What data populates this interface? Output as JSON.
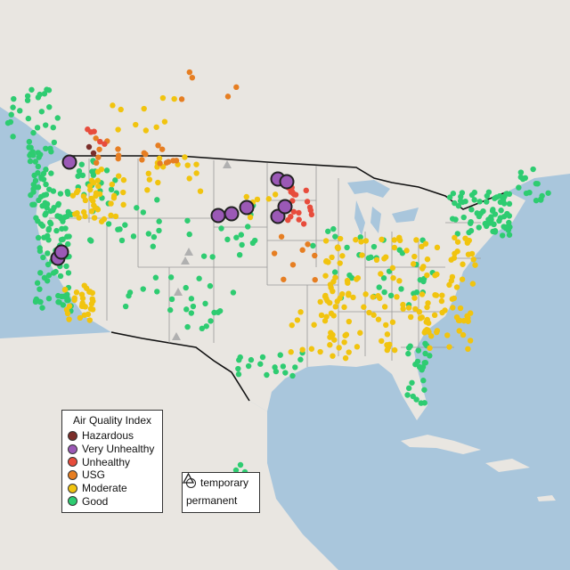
{
  "legend": {
    "title": "Air Quality Index",
    "categories": [
      {
        "label": "Hazardous",
        "color": "#7b2e2a"
      },
      {
        "label": "Very Unhealthy",
        "color": "#9b59b6"
      },
      {
        "label": "Unhealthy",
        "color": "#e74c3c"
      },
      {
        "label": "USG",
        "color": "#e67e22"
      },
      {
        "label": "Moderate",
        "color": "#f1c40f"
      },
      {
        "label": "Good",
        "color": "#2ecc71"
      }
    ],
    "types": [
      {
        "label": "temporary",
        "shape": "circle"
      },
      {
        "label": "permanent",
        "shape": "triangle"
      }
    ]
  },
  "colors": {
    "water": "#a9c6dc",
    "land": "#e9e6e1",
    "border": "#111111",
    "state_line": "#999999",
    "marker_outline": "#222222"
  }
}
